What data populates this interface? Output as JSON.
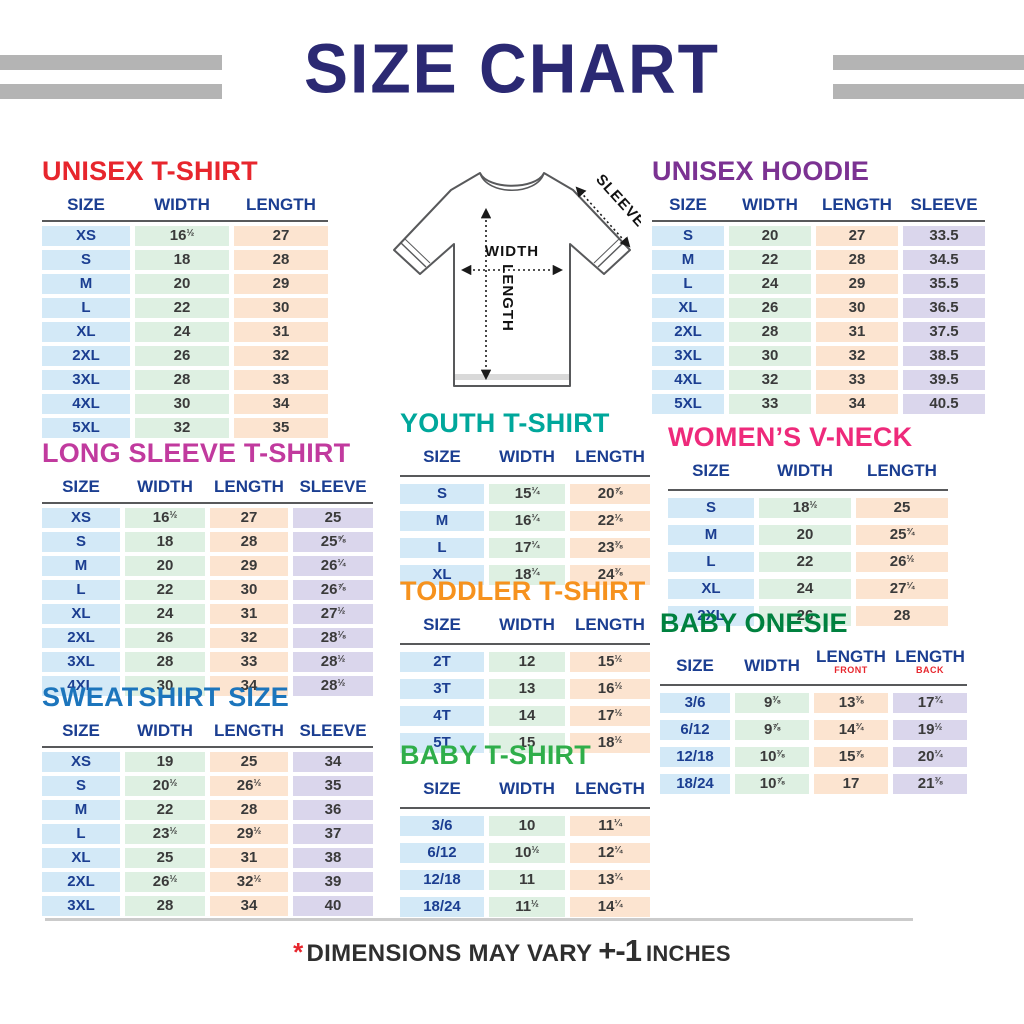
{
  "page": {
    "title": "SIZE CHART",
    "footer": {
      "asterisk": "*",
      "text": "DIMENSIONS MAY VARY",
      "plus_minus": "+-1",
      "unit": "INCHES"
    }
  },
  "diagram": {
    "width_label": "WIDTH",
    "length_label": "LENGTH",
    "sleeve_label": "SLEEVE"
  },
  "colors": {
    "main_title": "#2b2973",
    "header_text": "#1b3e91",
    "size_cell": "#d3e9f7",
    "width_cell": "#def0e2",
    "length_cell": "#fce4d0",
    "sleeve_cell": "#dad6ec",
    "side_bars": "#b4b4b4",
    "footer_asterisk": "#e7262d"
  },
  "tables": [
    {
      "title": "UNISEX T-SHIRT",
      "color": "#e7262d",
      "columns": [
        {
          "label": "SIZE",
          "type": "size"
        },
        {
          "label": "WIDTH",
          "type": "width"
        },
        {
          "label": "LENGTH",
          "type": "length"
        }
      ],
      "rows": [
        [
          "XS",
          "16½",
          "27"
        ],
        [
          "S",
          "18",
          "28"
        ],
        [
          "M",
          "20",
          "29"
        ],
        [
          "L",
          "22",
          "30"
        ],
        [
          "XL",
          "24",
          "31"
        ],
        [
          "2XL",
          "26",
          "32"
        ],
        [
          "3XL",
          "28",
          "33"
        ],
        [
          "4XL",
          "30",
          "34"
        ],
        [
          "5XL",
          "32",
          "35"
        ]
      ]
    },
    {
      "title": "UNISEX HOODIE",
      "color": "#7b3292",
      "columns": [
        {
          "label": "SIZE",
          "type": "size"
        },
        {
          "label": "WIDTH",
          "type": "width"
        },
        {
          "label": "LENGTH",
          "type": "length"
        },
        {
          "label": "SLEEVE",
          "type": "sleeve"
        }
      ],
      "rows": [
        [
          "S",
          "20",
          "27",
          "33.5"
        ],
        [
          "M",
          "22",
          "28",
          "34.5"
        ],
        [
          "L",
          "24",
          "29",
          "35.5"
        ],
        [
          "XL",
          "26",
          "30",
          "36.5"
        ],
        [
          "2XL",
          "28",
          "31",
          "37.5"
        ],
        [
          "3XL",
          "30",
          "32",
          "38.5"
        ],
        [
          "4XL",
          "32",
          "33",
          "39.5"
        ],
        [
          "5XL",
          "33",
          "34",
          "40.5"
        ]
      ]
    },
    {
      "title": "LONG SLEEVE T-SHIRT",
      "color": "#c13a9e",
      "columns": [
        {
          "label": "SIZE",
          "type": "size"
        },
        {
          "label": "WIDTH",
          "type": "width"
        },
        {
          "label": "LENGTH",
          "type": "length"
        },
        {
          "label": "SLEEVE",
          "type": "sleeve"
        }
      ],
      "rows": [
        [
          "XS",
          "16½",
          "27",
          "25"
        ],
        [
          "S",
          "18",
          "28",
          "25⅝"
        ],
        [
          "M",
          "20",
          "29",
          "26¼"
        ],
        [
          "L",
          "22",
          "30",
          "26⅞"
        ],
        [
          "XL",
          "24",
          "31",
          "27½"
        ],
        [
          "2XL",
          "26",
          "32",
          "28⅛"
        ],
        [
          "3XL",
          "28",
          "33",
          "28½"
        ],
        [
          "4XL",
          "30",
          "34",
          "28½"
        ]
      ]
    },
    {
      "title": "YOUTH T-SHIRT",
      "color": "#00a79b",
      "columns": [
        {
          "label": "SIZE",
          "type": "size"
        },
        {
          "label": "WIDTH",
          "type": "width"
        },
        {
          "label": "LENGTH",
          "type": "length"
        }
      ],
      "rows": [
        [
          "S",
          "15¼",
          "20⅞"
        ],
        [
          "M",
          "16¼",
          "22⅛"
        ],
        [
          "L",
          "17¼",
          "23⅜"
        ],
        [
          "XL",
          "18¼",
          "24⅜"
        ]
      ]
    },
    {
      "title": "WOMEN’S V-NECK",
      "color": "#ee2a7b",
      "columns": [
        {
          "label": "SIZE",
          "type": "size"
        },
        {
          "label": "WIDTH",
          "type": "width"
        },
        {
          "label": "LENGTH",
          "type": "length"
        }
      ],
      "rows": [
        [
          "S",
          "18½",
          "25"
        ],
        [
          "M",
          "20",
          "25¾"
        ],
        [
          "L",
          "22",
          "26½"
        ],
        [
          "XL",
          "24",
          "27¼"
        ],
        [
          "2XL",
          "26",
          "28"
        ]
      ]
    },
    {
      "title": "TODDLER T-SHIRT",
      "color": "#f6921e",
      "columns": [
        {
          "label": "SIZE",
          "type": "size"
        },
        {
          "label": "WIDTH",
          "type": "width"
        },
        {
          "label": "LENGTH",
          "type": "length"
        }
      ],
      "rows": [
        [
          "2T",
          "12",
          "15½"
        ],
        [
          "3T",
          "13",
          "16½"
        ],
        [
          "4T",
          "14",
          "17½"
        ],
        [
          "5T",
          "15",
          "18½"
        ]
      ]
    },
    {
      "title": "BABY ONESIE",
      "color": "#00813f",
      "columns": [
        {
          "label": "SIZE",
          "type": "size"
        },
        {
          "label": "WIDTH",
          "type": "width"
        },
        {
          "label": "LENGTH",
          "sub": "FRONT",
          "type": "length"
        },
        {
          "label": "LENGTH",
          "sub": "BACK",
          "type": "sleeve"
        }
      ],
      "rows": [
        [
          "3/6",
          "9⅜",
          "13⅜",
          "17¾"
        ],
        [
          "6/12",
          "9⅞",
          "14¾",
          "19½"
        ],
        [
          "12/18",
          "10⅜",
          "15⅞",
          "20¼"
        ],
        [
          "18/24",
          "10⅞",
          "17",
          "21⅜"
        ]
      ]
    },
    {
      "title": "SWEATSHIRT SIZE",
      "color": "#1c75bc",
      "columns": [
        {
          "label": "SIZE",
          "type": "size"
        },
        {
          "label": "WIDTH",
          "type": "width"
        },
        {
          "label": "LENGTH",
          "type": "length"
        },
        {
          "label": "SLEEVE",
          "type": "sleeve"
        }
      ],
      "rows": [
        [
          "XS",
          "19",
          "25",
          "34"
        ],
        [
          "S",
          "20½",
          "26½",
          "35"
        ],
        [
          "M",
          "22",
          "28",
          "36"
        ],
        [
          "L",
          "23½",
          "29½",
          "37"
        ],
        [
          "XL",
          "25",
          "31",
          "38"
        ],
        [
          "2XL",
          "26½",
          "32½",
          "39"
        ],
        [
          "3XL",
          "28",
          "34",
          "40"
        ]
      ]
    },
    {
      "title": "BABY T-SHIRT",
      "color": "#2fae4a",
      "columns": [
        {
          "label": "SIZE",
          "type": "size"
        },
        {
          "label": "WIDTH",
          "type": "width"
        },
        {
          "label": "LENGTH",
          "type": "length"
        }
      ],
      "rows": [
        [
          "3/6",
          "10",
          "11¼"
        ],
        [
          "6/12",
          "10½",
          "12¼"
        ],
        [
          "12/18",
          "11",
          "13¼"
        ],
        [
          "18/24",
          "11½",
          "14¼"
        ]
      ]
    }
  ]
}
